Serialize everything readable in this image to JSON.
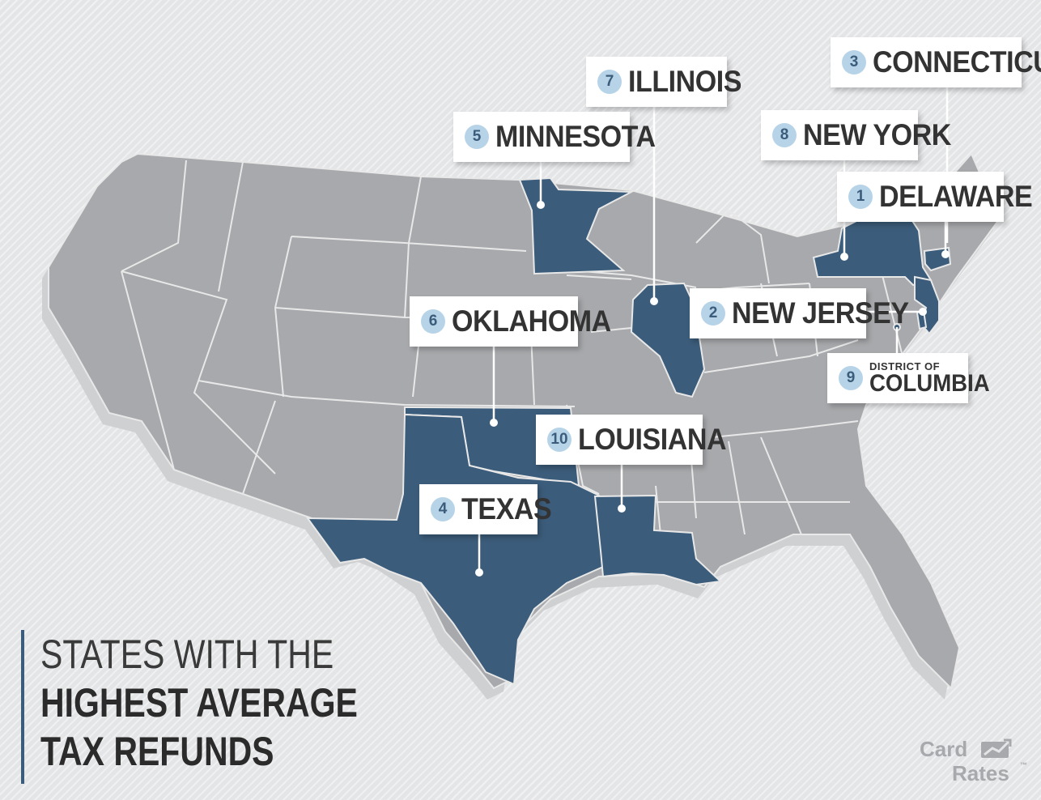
{
  "title": {
    "line1": "STATES WITH THE",
    "line2": "HIGHEST AVERAGE",
    "line3": "TAX REFUNDS"
  },
  "brand": {
    "line1": "Card",
    "line2": "Rates",
    "tm": "™"
  },
  "colors": {
    "highlight": "#3b5c7a",
    "state_gray": "#a7a9ac",
    "border": "#e8e8e8",
    "rank_circle": "#b7d3e8",
    "background": "#e4e5e7"
  },
  "states": [
    {
      "rank": "1",
      "name": "DELAWARE"
    },
    {
      "rank": "2",
      "name": "NEW JERSEY"
    },
    {
      "rank": "3",
      "name": "CONNECTICUT"
    },
    {
      "rank": "4",
      "name": "TEXAS"
    },
    {
      "rank": "5",
      "name": "MINNESOTA"
    },
    {
      "rank": "6",
      "name": "OKLAHOMA"
    },
    {
      "rank": "7",
      "name": "ILLINOIS"
    },
    {
      "rank": "8",
      "name": "NEW YORK"
    },
    {
      "rank": "9",
      "name_small": "DISTRICT OF",
      "name_big": "COLUMBIA"
    },
    {
      "rank": "10",
      "name": "LOUISIANA"
    }
  ]
}
